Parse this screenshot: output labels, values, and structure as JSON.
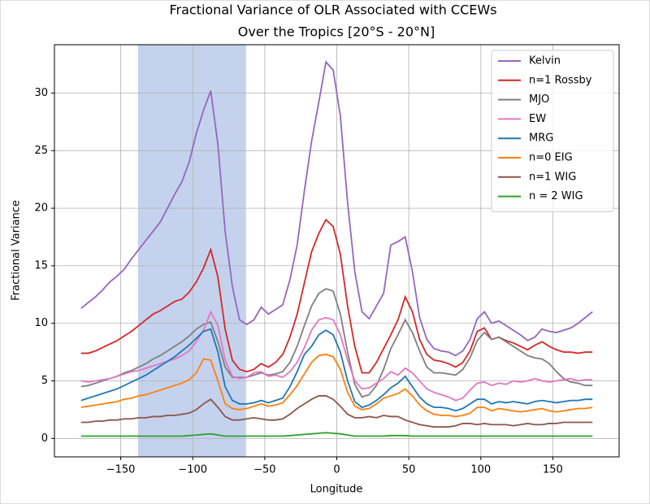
{
  "chart_data": {
    "type": "line",
    "title": "Fractional Variance of OLR Associated with CCEWs",
    "subtitle": "Over the Tropics [20°S - 20°N]",
    "x_label": "Longitude",
    "y_label": "Fractional Variance",
    "x": [
      -177.5,
      -172.5,
      -167.5,
      -162.5,
      -157.5,
      -152.5,
      -147.5,
      -142.5,
      -137.5,
      -132.5,
      -127.5,
      -122.5,
      -117.5,
      -112.5,
      -107.5,
      -102.5,
      -97.5,
      -92.5,
      -87.5,
      -82.5,
      -77.5,
      -72.5,
      -67.5,
      -62.5,
      -57.5,
      -52.5,
      -47.5,
      -42.5,
      -37.5,
      -32.5,
      -27.5,
      -22.5,
      -17.5,
      -12.5,
      -7.5,
      -2.5,
      2.5,
      7.5,
      12.5,
      17.5,
      22.5,
      27.5,
      32.5,
      37.5,
      42.5,
      47.5,
      52.5,
      57.5,
      62.5,
      67.5,
      72.5,
      77.5,
      82.5,
      87.5,
      92.5,
      97.5,
      102.5,
      107.5,
      112.5,
      117.5,
      122.5,
      127.5,
      132.5,
      137.5,
      142.5,
      147.5,
      152.5,
      157.5,
      162.5,
      167.5,
      172.5,
      177.5
    ],
    "series": [
      {
        "name": "Kelvin",
        "color": "#9467bd",
        "values": [
          11.3,
          11.8,
          12.3,
          12.9,
          13.6,
          14.1,
          14.7,
          15.6,
          16.4,
          17.2,
          18.0,
          18.8,
          20.0,
          21.2,
          22.3,
          24.0,
          26.5,
          28.5,
          30.2,
          25.5,
          18.0,
          13.2,
          10.3,
          9.9,
          10.3,
          11.4,
          10.8,
          11.2,
          11.6,
          13.8,
          16.8,
          21.5,
          25.8,
          29.2,
          32.7,
          32.0,
          28.0,
          20.5,
          14.5,
          11.0,
          10.4,
          11.5,
          12.6,
          16.8,
          17.1,
          17.5,
          14.5,
          10.5,
          8.6,
          7.8,
          7.6,
          7.5,
          7.2,
          7.6,
          8.6,
          10.4,
          11.0,
          10.0,
          10.2,
          9.8,
          9.4,
          9.0,
          8.5,
          8.8,
          9.5,
          9.3,
          9.2,
          9.4,
          9.6,
          10.0,
          10.5,
          11.0
        ]
      },
      {
        "name": "n=1 Rossby",
        "color": "#d62728",
        "values": [
          7.4,
          7.4,
          7.6,
          7.9,
          8.2,
          8.5,
          8.9,
          9.3,
          9.8,
          10.3,
          10.8,
          11.1,
          11.5,
          11.9,
          12.1,
          12.7,
          13.6,
          14.8,
          16.4,
          14.0,
          9.5,
          6.8,
          6.0,
          5.8,
          6.0,
          6.5,
          6.2,
          6.6,
          7.3,
          8.8,
          10.8,
          13.5,
          16.2,
          17.8,
          19.0,
          18.4,
          16.0,
          11.5,
          8.0,
          5.7,
          5.7,
          6.6,
          7.8,
          9.0,
          10.3,
          12.3,
          11.0,
          8.6,
          7.3,
          6.8,
          6.7,
          6.5,
          6.2,
          6.6,
          7.6,
          9.3,
          9.6,
          8.6,
          8.8,
          8.5,
          8.3,
          8.0,
          7.7,
          8.1,
          8.4,
          8.0,
          7.7,
          7.5,
          7.5,
          7.4,
          7.5,
          7.5
        ]
      },
      {
        "name": "MJO",
        "color": "#7f7f7f",
        "values": [
          4.5,
          4.6,
          4.8,
          5.0,
          5.2,
          5.4,
          5.7,
          5.9,
          6.2,
          6.5,
          6.9,
          7.2,
          7.6,
          8.0,
          8.4,
          8.9,
          9.5,
          9.9,
          10.1,
          8.4,
          6.2,
          5.3,
          5.3,
          5.3,
          5.5,
          5.7,
          5.5,
          5.6,
          5.8,
          6.6,
          8.0,
          9.8,
          11.5,
          12.6,
          13.0,
          12.8,
          10.8,
          7.5,
          4.7,
          3.6,
          3.8,
          4.6,
          6.0,
          7.8,
          9.0,
          10.3,
          9.2,
          7.6,
          6.2,
          5.7,
          5.7,
          5.6,
          5.5,
          6.0,
          7.0,
          8.5,
          9.2,
          8.6,
          8.8,
          8.4,
          8.0,
          7.6,
          7.2,
          7.0,
          6.9,
          6.5,
          5.8,
          5.2,
          4.9,
          4.8,
          4.6,
          4.6
        ]
      },
      {
        "name": "EW",
        "color": "#e377c2",
        "values": [
          5.0,
          4.9,
          5.0,
          5.1,
          5.2,
          5.4,
          5.6,
          5.8,
          5.9,
          6.1,
          6.3,
          6.5,
          6.7,
          6.9,
          7.2,
          7.6,
          8.4,
          9.4,
          11.0,
          9.8,
          6.8,
          5.4,
          5.2,
          5.3,
          5.7,
          5.8,
          5.4,
          5.5,
          5.3,
          5.8,
          6.6,
          7.9,
          9.4,
          10.3,
          10.5,
          10.3,
          9.0,
          6.8,
          5.0,
          4.3,
          4.4,
          4.8,
          5.2,
          5.8,
          5.5,
          6.1,
          5.7,
          5.0,
          4.3,
          4.0,
          3.8,
          3.6,
          3.3,
          3.5,
          4.2,
          4.8,
          4.9,
          4.6,
          4.8,
          4.7,
          5.0,
          4.9,
          5.0,
          5.2,
          5.0,
          4.9,
          5.0,
          5.1,
          5.2,
          5.0,
          5.1,
          5.1
        ]
      },
      {
        "name": "MRG",
        "color": "#1f77b4",
        "values": [
          3.3,
          3.5,
          3.7,
          3.9,
          4.1,
          4.3,
          4.6,
          4.9,
          5.2,
          5.5,
          5.9,
          6.3,
          6.7,
          7.1,
          7.6,
          8.1,
          8.7,
          9.3,
          9.5,
          7.5,
          4.5,
          3.3,
          3.0,
          3.0,
          3.1,
          3.3,
          3.1,
          3.3,
          3.5,
          4.5,
          5.8,
          7.3,
          8.0,
          9.0,
          9.4,
          9.0,
          7.5,
          5.0,
          3.2,
          2.7,
          2.9,
          3.3,
          3.8,
          4.4,
          4.8,
          5.4,
          4.5,
          3.6,
          3.0,
          2.7,
          2.7,
          2.6,
          2.4,
          2.6,
          3.0,
          3.4,
          3.4,
          3.0,
          3.2,
          3.1,
          3.2,
          3.1,
          3.0,
          3.2,
          3.3,
          3.2,
          3.1,
          3.2,
          3.3,
          3.3,
          3.4,
          3.4
        ]
      },
      {
        "name": "n=0 EIG",
        "color": "#ff7f0e",
        "values": [
          2.7,
          2.8,
          2.9,
          3.0,
          3.1,
          3.2,
          3.4,
          3.5,
          3.7,
          3.8,
          4.0,
          4.2,
          4.4,
          4.6,
          4.8,
          5.1,
          5.7,
          6.9,
          6.8,
          5.0,
          3.0,
          2.6,
          2.5,
          2.6,
          2.8,
          3.0,
          2.8,
          2.9,
          3.1,
          3.8,
          4.6,
          5.6,
          6.6,
          7.2,
          7.3,
          7.1,
          6.0,
          4.0,
          2.8,
          2.5,
          2.6,
          3.0,
          3.5,
          3.7,
          3.9,
          4.3,
          3.7,
          2.9,
          2.4,
          2.1,
          2.0,
          2.0,
          1.9,
          2.0,
          2.2,
          2.7,
          2.7,
          2.4,
          2.6,
          2.5,
          2.4,
          2.3,
          2.4,
          2.5,
          2.6,
          2.4,
          2.3,
          2.4,
          2.5,
          2.6,
          2.6,
          2.7
        ]
      },
      {
        "name": "n=1 WIG",
        "color": "#8c564b",
        "values": [
          1.4,
          1.4,
          1.5,
          1.5,
          1.6,
          1.6,
          1.7,
          1.7,
          1.8,
          1.8,
          1.9,
          1.9,
          2.0,
          2.0,
          2.1,
          2.2,
          2.5,
          3.0,
          3.4,
          2.7,
          1.9,
          1.6,
          1.6,
          1.7,
          1.8,
          1.7,
          1.6,
          1.6,
          1.7,
          2.1,
          2.6,
          3.0,
          3.4,
          3.7,
          3.7,
          3.4,
          2.8,
          2.1,
          1.8,
          1.8,
          1.9,
          1.8,
          2.0,
          1.9,
          1.9,
          1.6,
          1.4,
          1.2,
          1.1,
          1.0,
          1.0,
          1.0,
          1.1,
          1.3,
          1.3,
          1.2,
          1.3,
          1.2,
          1.2,
          1.2,
          1.1,
          1.2,
          1.3,
          1.2,
          1.2,
          1.3,
          1.3,
          1.4,
          1.4,
          1.4,
          1.4,
          1.4
        ]
      },
      {
        "name": "n = 2 WIG",
        "color": "#2ca02c",
        "values": [
          0.2,
          0.2,
          0.2,
          0.2,
          0.2,
          0.2,
          0.2,
          0.2,
          0.2,
          0.2,
          0.2,
          0.2,
          0.2,
          0.2,
          0.2,
          0.25,
          0.3,
          0.35,
          0.4,
          0.3,
          0.2,
          0.2,
          0.2,
          0.2,
          0.2,
          0.2,
          0.2,
          0.2,
          0.2,
          0.25,
          0.3,
          0.35,
          0.4,
          0.45,
          0.5,
          0.45,
          0.4,
          0.3,
          0.2,
          0.2,
          0.2,
          0.2,
          0.2,
          0.25,
          0.25,
          0.25,
          0.2,
          0.2,
          0.2,
          0.2,
          0.2,
          0.2,
          0.2,
          0.2,
          0.2,
          0.2,
          0.2,
          0.2,
          0.2,
          0.2,
          0.2,
          0.2,
          0.2,
          0.2,
          0.2,
          0.2,
          0.2,
          0.2,
          0.2,
          0.2,
          0.2,
          0.2
        ]
      }
    ],
    "highlight_span": [
      -138,
      -63
    ],
    "highlight_color": "#c5d2ee",
    "xlim": [
      -196,
      196
    ],
    "ylim": [
      -1.6,
      34.2
    ],
    "xticks": [
      {
        "value": -150,
        "label": "−150"
      },
      {
        "value": -100,
        "label": "−100"
      },
      {
        "value": -50,
        "label": "−50"
      },
      0,
      50,
      100,
      150
    ],
    "yticks": [
      0,
      5,
      10,
      15,
      20,
      25,
      30
    ],
    "grid": true,
    "legend": "upper right"
  }
}
